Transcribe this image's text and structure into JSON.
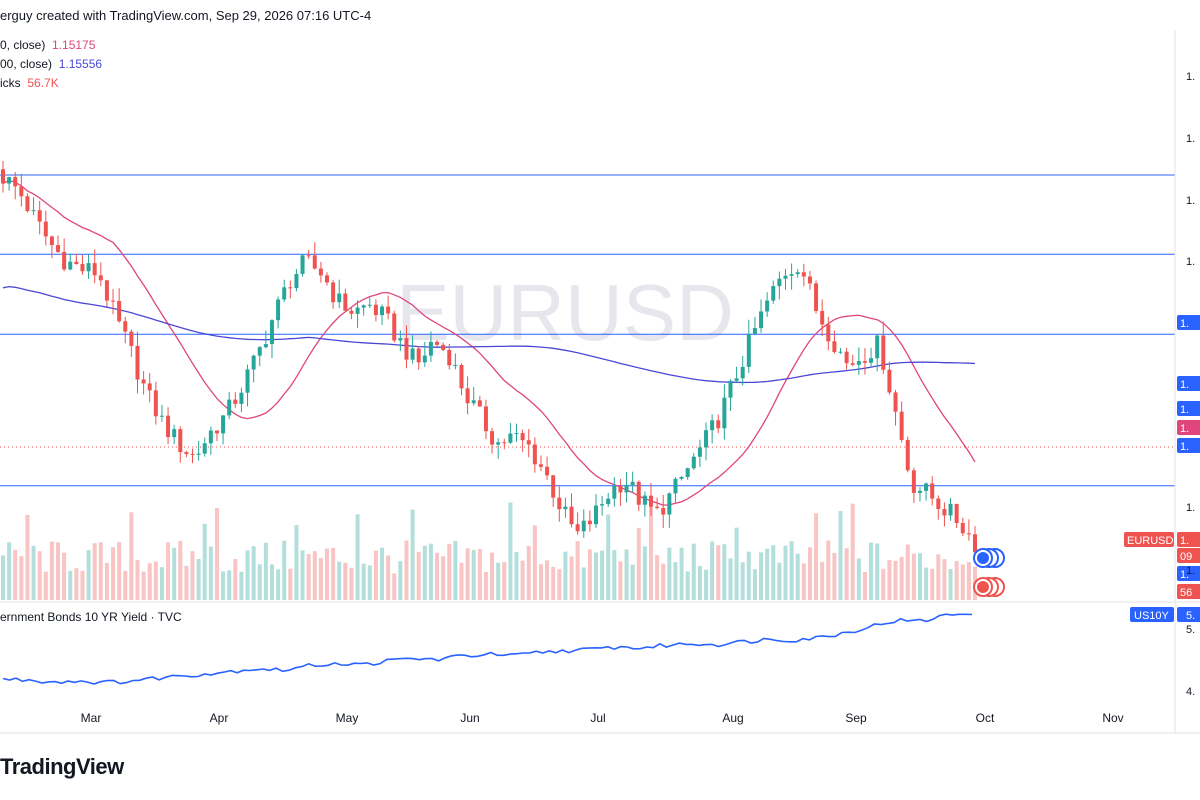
{
  "header": {
    "text": "erguy created with TradingView.com, Sep 29, 2026 07:16 UTC-4"
  },
  "legend": [
    {
      "label": "0, close)",
      "value": "1.15175"
    },
    {
      "label": "00, close)",
      "value": "1.15556"
    },
    {
      "label": "icks",
      "value": "56.7K"
    }
  ],
  "lower_pane": {
    "title": "ernment Bonds 10 YR Yield · TVC"
  },
  "branding": {
    "logo": "TradingView",
    "watermark": "EURUSD"
  },
  "colors": {
    "up": "#26a69a",
    "down": "#ef5350",
    "vol_up": "#b2dfdb",
    "vol_down": "#f8c4c4",
    "ma50": "#e0457b",
    "ma200": "#4b47d6",
    "hline": "#2962ff",
    "yield": "#2962ff",
    "badge_eurusd": "#ef5350",
    "badge_us10y": "#2962ff"
  },
  "chart_data": [
    {
      "type": "candlestick",
      "symbol": "EURUSD",
      "x_ticks": [
        "Mar",
        "Apr",
        "May",
        "Jun",
        "Jul",
        "Aug",
        "Sep",
        "Oct",
        "Nov"
      ],
      "y_tick_labels": [
        "1.",
        "1.",
        "1.",
        "1.",
        "1.",
        "1."
      ],
      "horizontal_lines": 4,
      "price_badges": [
        {
          "label": "1.",
          "color": "#2962ff"
        },
        {
          "label": "1.",
          "color": "#2962ff"
        },
        {
          "label": "1.",
          "color": "#2962ff"
        },
        {
          "label": "1.",
          "color": "#e0457b"
        },
        {
          "label": "1.",
          "color": "#2962ff"
        },
        {
          "label": "EURUSD",
          "color": "#ef5350"
        },
        {
          "label": "1.",
          "color": "#ef5350"
        },
        {
          "label": "09",
          "color": "#ef5350"
        },
        {
          "label": "1.",
          "color": "#2962ff"
        },
        {
          "label": "56",
          "color": "#ef5350"
        }
      ],
      "close_path": [
        1.187,
        1.183,
        1.175,
        1.168,
        1.163,
        1.161,
        1.16,
        1.148,
        1.138,
        1.126,
        1.118,
        1.112,
        1.108,
        1.115,
        1.12,
        1.128,
        1.137,
        1.148,
        1.158,
        1.163,
        1.16,
        1.152,
        1.149,
        1.151,
        1.147,
        1.14,
        1.134,
        1.141,
        1.137,
        1.126,
        1.119,
        1.112,
        1.114,
        1.111,
        1.104,
        1.094,
        1.086,
        1.091,
        1.098,
        1.102,
        1.096,
        1.092,
        1.098,
        1.105,
        1.112,
        1.12,
        1.131,
        1.142,
        1.152,
        1.16,
        1.163,
        1.15,
        1.142,
        1.134,
        1.137,
        1.14,
        1.121,
        1.101,
        1.098,
        1.094,
        1.09,
        1.084
      ],
      "series": [
        {
          "name": "0, close)",
          "last": 1.15175
        },
        {
          "name": "00, close)",
          "last": 1.15556
        },
        {
          "name": "icks",
          "last": "56.7K"
        }
      ]
    },
    {
      "type": "line",
      "symbol": "US10Y",
      "x_ticks": [
        "Mar",
        "Apr",
        "May",
        "Jun",
        "Jul",
        "Aug",
        "Sep",
        "Oct",
        "Nov"
      ],
      "y_tick_labels": [
        "5.",
        "4."
      ],
      "badge": {
        "label": "US10Y",
        "value": "5."
      },
      "values": [
        4.4,
        4.39,
        4.37,
        4.38,
        4.36,
        4.38,
        4.41,
        4.44,
        4.46,
        4.49,
        4.52,
        4.5,
        4.55,
        4.58,
        4.56,
        4.6,
        4.63,
        4.62,
        4.66,
        4.68,
        4.66,
        4.7,
        4.72,
        4.73,
        4.76,
        4.75,
        4.78,
        4.8,
        4.79,
        4.82,
        4.85,
        4.84,
        4.87,
        4.92,
        4.99,
        5.06,
        5.05,
        5.12,
        5.15
      ]
    }
  ]
}
